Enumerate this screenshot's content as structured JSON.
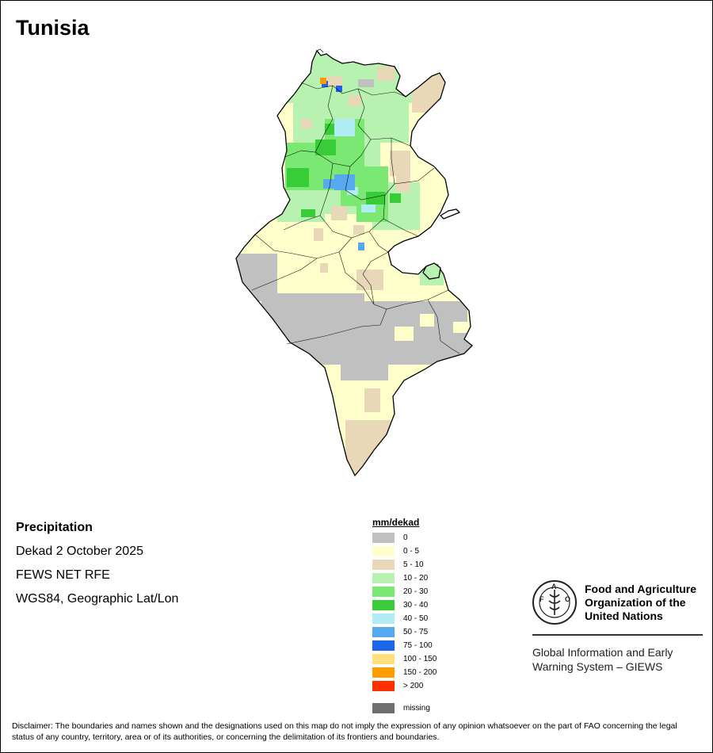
{
  "map": {
    "country": "Tunisia",
    "product": "Precipitation",
    "period": "Dekad 2 October 2025",
    "source": "FEWS NET RFE",
    "projection": "WGS84, Geographic Lat/Lon"
  },
  "legend": {
    "title": "mm/dekad",
    "classes": [
      {
        "label": "0",
        "color": "#c0c0c0"
      },
      {
        "label": "0 - 5",
        "color": "#ffffcc"
      },
      {
        "label": "5 - 10",
        "color": "#e8d8b8"
      },
      {
        "label": "10 - 20",
        "color": "#b8f2b0"
      },
      {
        "label": "20 - 30",
        "color": "#7ce874"
      },
      {
        "label": "30 - 40",
        "color": "#38cc38"
      },
      {
        "label": "40 - 50",
        "color": "#b0ecf4"
      },
      {
        "label": "50 - 75",
        "color": "#58a8f0"
      },
      {
        "label": "75 - 100",
        "color": "#1c64e8"
      },
      {
        "label": "100 - 150",
        "color": "#ffe07c"
      },
      {
        "label": "150 - 200",
        "color": "#ff9c00"
      },
      {
        "label": "> 200",
        "color": "#ff3000"
      }
    ],
    "missing": {
      "label": "missing",
      "color": "#6e6e6e"
    }
  },
  "organization": {
    "logo_text": "FAO",
    "logo_motto": "FIAT PANIS",
    "name": "Food and Agriculture Organization of the United Nations",
    "system": "Global Information and Early Warning System – GIEWS"
  },
  "disclaimer": "Disclaimer: The boundaries and names shown and the designations used on this map do not imply the expression of any opinion whatsoever on the part of FAO concerning the legal status of any country, territory, area or of its authorities, or concerning the delimitation of its frontiers and boundaries."
}
